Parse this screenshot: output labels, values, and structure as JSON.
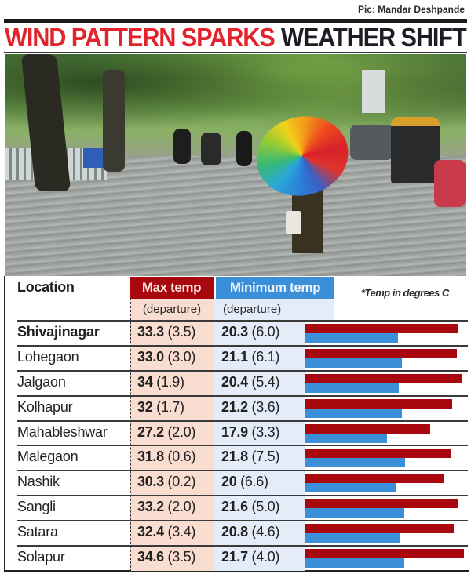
{
  "credit": "Pic: Mandar Deshpande",
  "headline": {
    "red_part": "WIND PATTERN SPARKS",
    "dark_part": "WEATHER SHIFT",
    "red_color": "#e3232b",
    "dark_color": "#1c1c24"
  },
  "photo": {
    "description": "Rain-soaked street with person holding rainbow umbrella, motorcyclists and auto-rickshaw"
  },
  "table": {
    "headers": {
      "location": "Location",
      "max_temp": "Max temp",
      "max_sub": "(departure)",
      "min_temp": "Minimum temp",
      "min_sub": "(departure)",
      "note": "*Temp in degrees C"
    },
    "colors": {
      "max": "#a8070d",
      "min": "#3b8ed8",
      "max_bg": "#f9ddd0",
      "min_bg": "#e4ecf9"
    },
    "rows": [
      {
        "location": "Shivajinagar",
        "max": "33.3",
        "max_dep": "(3.5)",
        "min": "20.3",
        "min_dep": "(6.0)"
      },
      {
        "location": "Lohegaon",
        "max": "33.0",
        "max_dep": "(3.0)",
        "min": "21.1",
        "min_dep": "(6.1)"
      },
      {
        "location": "Jalgaon",
        "max": "34",
        "max_dep": "(1.9)",
        "min": "20.4",
        "min_dep": "(5.4)"
      },
      {
        "location": "Kolhapur",
        "max": "32",
        "max_dep": "(1.7)",
        "min": "21.2",
        "min_dep": "(3.6)"
      },
      {
        "location": "Mahableshwar",
        "max": "27.2",
        "max_dep": "(2.0)",
        "min": "17.9",
        "min_dep": "(3.3)"
      },
      {
        "location": "Malegaon",
        "max": "31.8",
        "max_dep": "(0.6)",
        "min": "21.8",
        "min_dep": "(7.5)"
      },
      {
        "location": "Nashik",
        "max": "30.3",
        "max_dep": "(0.2)",
        "min": "20",
        "min_dep": "(6.6)"
      },
      {
        "location": "Sangli",
        "max": "33.2",
        "max_dep": "(2.0)",
        "min": "21.6",
        "min_dep": "(5.0)"
      },
      {
        "location": "Satara",
        "max": "32.4",
        "max_dep": "(3.4)",
        "min": "20.8",
        "min_dep": "(4.6)"
      },
      {
        "location": "Solapur",
        "max": "34.6",
        "max_dep": "(3.5)",
        "min": "21.7",
        "min_dep": "(4.0)"
      }
    ]
  },
  "chart_data": {
    "type": "bar",
    "orientation": "horizontal",
    "title": "Wind pattern sparks weather shift",
    "xlabel": "Temperature (degrees C)",
    "ylabel": "Location",
    "categories": [
      "Shivajinagar",
      "Lohegaon",
      "Jalgaon",
      "Kolhapur",
      "Mahableshwar",
      "Malegaon",
      "Nashik",
      "Sangli",
      "Satara",
      "Solapur"
    ],
    "series": [
      {
        "name": "Max temp",
        "color": "#a8070d",
        "values": [
          33.3,
          33.0,
          34,
          32,
          27.2,
          31.8,
          30.3,
          33.2,
          32.4,
          34.6
        ],
        "departure": [
          3.5,
          3.0,
          1.9,
          1.7,
          2.0,
          0.6,
          0.2,
          2.0,
          3.4,
          3.5
        ]
      },
      {
        "name": "Minimum temp",
        "color": "#3b8ed8",
        "values": [
          20.3,
          21.1,
          20.4,
          21.2,
          17.9,
          21.8,
          20,
          21.6,
          20.8,
          21.7
        ],
        "departure": [
          6.0,
          6.1,
          5.4,
          3.6,
          3.3,
          7.5,
          6.6,
          5.0,
          4.6,
          4.0
        ]
      }
    ],
    "annotations": [
      "*Temp in degrees C"
    ],
    "grid": false,
    "legend": "column headers"
  }
}
